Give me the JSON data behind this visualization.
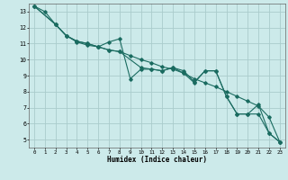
{
  "xlabel": "Humidex (Indice chaleur)",
  "bg_color": "#cceaea",
  "line_color": "#1a6b60",
  "grid_color": "#aacccc",
  "xlim": [
    -0.5,
    23.5
  ],
  "ylim": [
    4.5,
    13.5
  ],
  "yticks": [
    5,
    6,
    7,
    8,
    9,
    10,
    11,
    12,
    13
  ],
  "xticks": [
    0,
    1,
    2,
    3,
    4,
    5,
    6,
    7,
    8,
    9,
    10,
    11,
    12,
    13,
    14,
    15,
    16,
    17,
    18,
    19,
    20,
    21,
    22,
    23
  ],
  "series": [
    {
      "x": [
        0,
        1,
        2,
        3,
        4,
        5,
        6,
        7,
        8,
        9,
        10,
        11,
        12,
        13,
        14,
        15,
        16,
        17,
        18,
        19,
        20,
        21,
        22,
        23
      ],
      "y": [
        13.35,
        13.0,
        12.2,
        11.5,
        11.1,
        10.9,
        10.8,
        11.1,
        11.3,
        8.8,
        9.4,
        9.4,
        9.3,
        9.5,
        9.3,
        8.6,
        9.3,
        9.3,
        7.7,
        6.6,
        6.6,
        7.2,
        5.4,
        4.85
      ]
    },
    {
      "x": [
        0,
        2,
        3,
        4,
        5,
        6,
        7,
        8,
        9,
        10,
        11,
        12,
        13,
        14,
        15,
        16,
        17,
        18,
        19,
        20,
        21,
        22,
        23
      ],
      "y": [
        13.35,
        12.2,
        11.5,
        11.15,
        11.0,
        10.8,
        10.6,
        10.5,
        10.25,
        10.0,
        9.8,
        9.55,
        9.4,
        9.15,
        8.8,
        8.55,
        8.3,
        8.0,
        7.7,
        7.4,
        7.1,
        6.4,
        4.85
      ]
    },
    {
      "x": [
        0,
        2,
        3,
        4,
        5,
        6,
        7,
        8,
        10,
        11,
        12,
        13,
        14,
        15,
        16,
        17,
        18,
        19,
        20,
        21,
        22,
        23
      ],
      "y": [
        13.35,
        12.2,
        11.5,
        11.15,
        11.0,
        10.8,
        10.6,
        10.5,
        9.5,
        9.4,
        9.3,
        9.5,
        9.15,
        8.55,
        9.3,
        9.3,
        7.7,
        6.6,
        6.6,
        6.6,
        5.4,
        4.85
      ]
    }
  ]
}
